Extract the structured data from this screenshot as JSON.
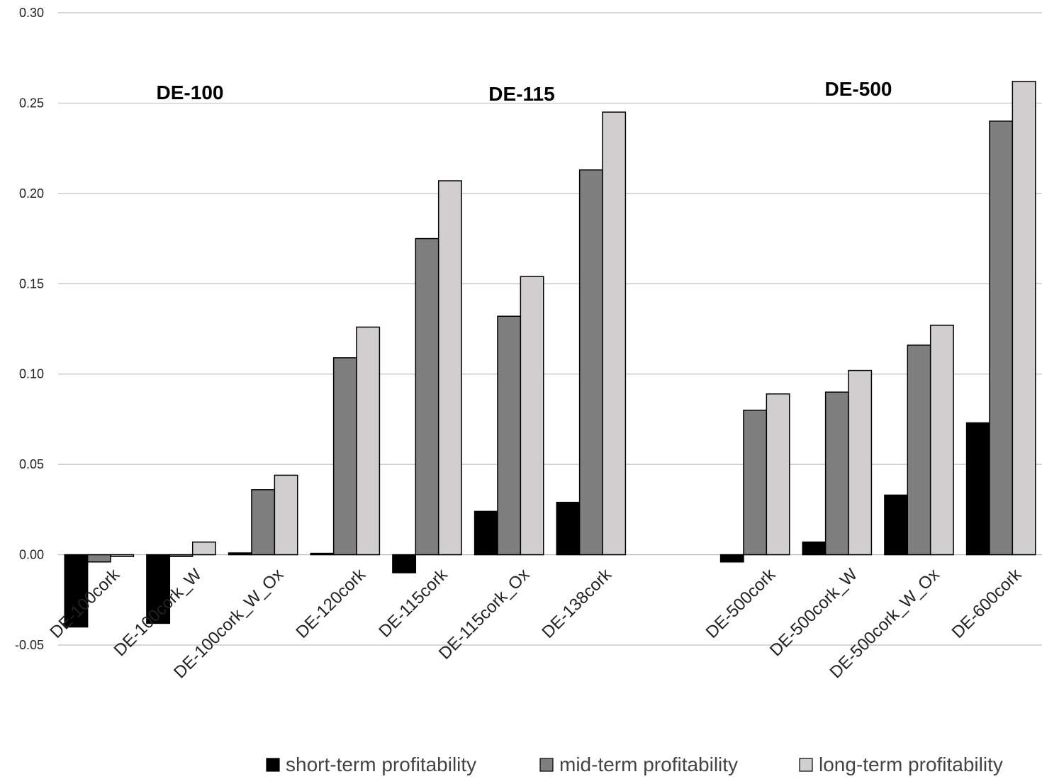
{
  "chart_data": {
    "type": "bar",
    "title": "",
    "xlabel": "",
    "ylabel": "",
    "ylim": [
      -0.05,
      0.3
    ],
    "yticks": [
      -0.05,
      0.0,
      0.05,
      0.1,
      0.15,
      0.2,
      0.25,
      0.3
    ],
    "ytick_labels": [
      "-0.05",
      "0.00",
      "0.05",
      "0.10",
      "0.15",
      "0.20",
      "0.25",
      "0.30"
    ],
    "grid": true,
    "legend_position": "bottom",
    "categories": [
      "DE-100cork",
      "DE-100cork_W",
      "DE-100cork_W_Ox",
      "DE-120cork",
      "DE-115cork",
      "DE-115cork_Ox",
      "DE-138cork",
      "",
      "DE-500cork",
      "DE-500cork_W",
      "DE-500cork_W_Ox",
      "DE-600cork"
    ],
    "group_labels": [
      "DE-100",
      "DE-115",
      "DE-500"
    ],
    "series": [
      {
        "name": "short-term profitability",
        "color": "#000000",
        "values": [
          -0.04,
          -0.038,
          0.001,
          0.0005,
          -0.01,
          0.024,
          0.029,
          null,
          -0.004,
          0.007,
          0.033,
          0.073
        ]
      },
      {
        "name": "mid-term profitability",
        "color": "#7f7f7f",
        "values": [
          -0.004,
          -0.001,
          0.036,
          0.109,
          0.175,
          0.132,
          0.213,
          null,
          0.08,
          0.09,
          0.116,
          0.24
        ]
      },
      {
        "name": "long-term profitability",
        "color": "#d0cece",
        "values": [
          -0.001,
          0.007,
          0.044,
          0.126,
          0.207,
          0.154,
          0.245,
          null,
          0.089,
          0.102,
          0.127,
          0.262
        ]
      }
    ]
  }
}
